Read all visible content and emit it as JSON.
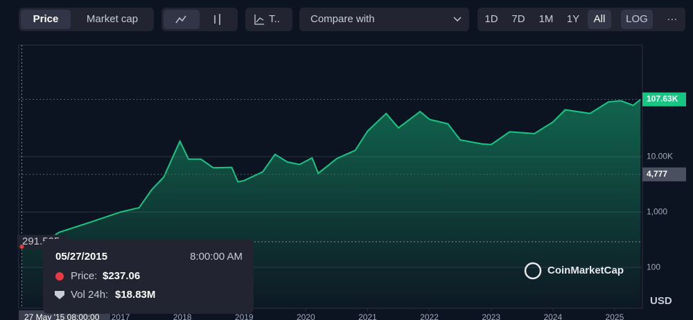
{
  "toolbar": {
    "view_tabs": [
      "Price",
      "Market cap"
    ],
    "type_button": "T..",
    "compare": "Compare with",
    "ranges": [
      "1D",
      "7D",
      "1M",
      "1Y",
      "All"
    ],
    "log": "LOG",
    "more": "···"
  },
  "watermark": "CoinMarketCap",
  "chart_data": {
    "type": "area",
    "log_scale": true,
    "color": "#16c784",
    "grid": true,
    "unit": "USD",
    "x": [
      2015.4,
      2015.8,
      2016.0,
      2016.5,
      2017.0,
      2017.3,
      2017.5,
      2017.7,
      2017.96,
      2018.1,
      2018.3,
      2018.5,
      2018.8,
      2018.9,
      2019.0,
      2019.3,
      2019.5,
      2019.7,
      2019.9,
      2020.1,
      2020.2,
      2020.5,
      2020.8,
      2021.0,
      2021.3,
      2021.5,
      2021.85,
      2022.0,
      2022.3,
      2022.5,
      2022.85,
      2023.0,
      2023.3,
      2023.7,
      2024.0,
      2024.2,
      2024.6,
      2024.9,
      2025.1,
      2025.3,
      2025.42
    ],
    "values": [
      237,
      300,
      430,
      650,
      1000,
      1200,
      2500,
      4300,
      19000,
      9000,
      9000,
      6300,
      6400,
      3500,
      3700,
      5300,
      11000,
      8000,
      7200,
      9500,
      5000,
      9200,
      13000,
      29000,
      60000,
      33000,
      65000,
      47000,
      39000,
      20000,
      17000,
      16500,
      28000,
      26000,
      42000,
      70000,
      60000,
      97000,
      102000,
      84000,
      107630
    ],
    "xlim": [
      2015.35,
      2025.45
    ],
    "xticks": [
      2017,
      2018,
      2019,
      2020,
      2021,
      2022,
      2023,
      2024,
      2025
    ],
    "ylim": [
      18.4,
      1030000
    ],
    "yticks": [
      100,
      {
        "value": 1000,
        "label": "1,000"
      },
      {
        "value": 10000,
        "label": "10.00K"
      }
    ],
    "last_price": {
      "value": 107630,
      "label": "107.63K"
    },
    "hover_price": {
      "value": 4777,
      "label": "4,777"
    },
    "crosshair_value": 291.525,
    "crosshair_x_label": "27 May '15 08:00:00",
    "tooltip": {
      "date": "05/27/2015",
      "time": "8:00:00 AM",
      "price_label": "Price:",
      "price": "$237.06",
      "volume_label": "Vol 24h:",
      "volume": "$18.83M"
    }
  }
}
